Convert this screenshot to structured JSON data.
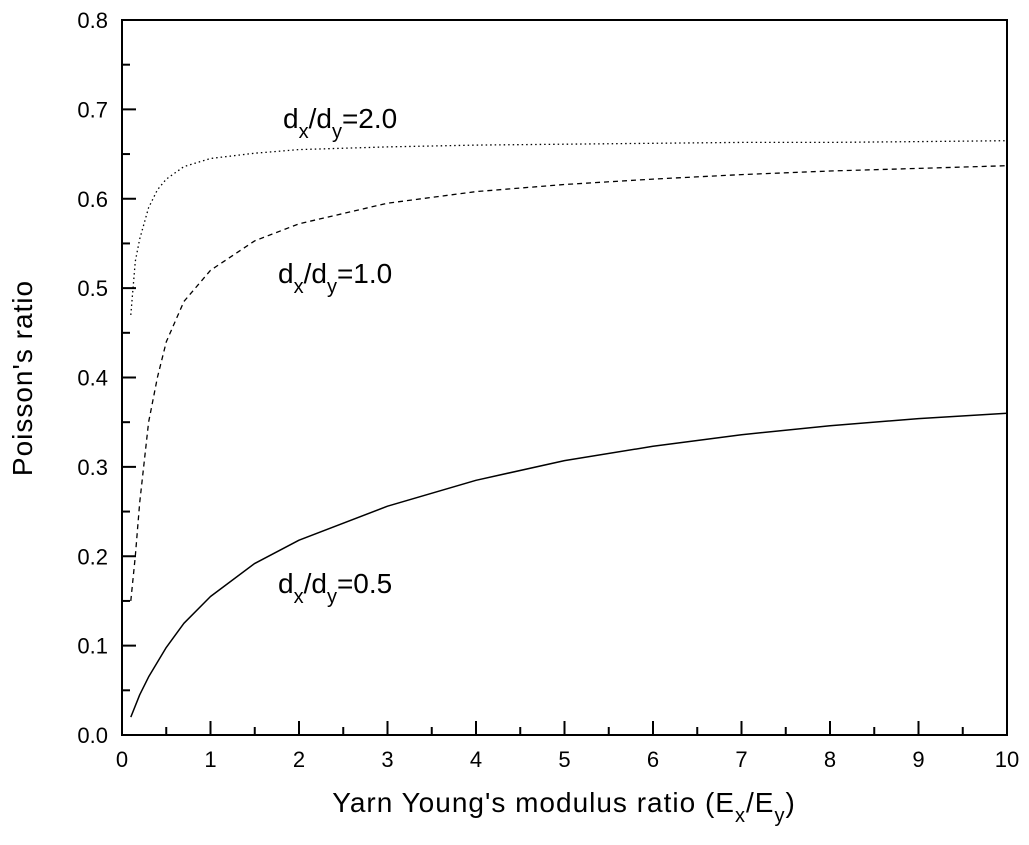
{
  "chart_data": {
    "type": "line",
    "title": "",
    "xlabel": {
      "main": "Yarn Young's modulus ratio (E",
      "sub1": "x",
      "slash": "/E",
      "sub2": "y",
      "close": ")"
    },
    "ylabel": "Poisson's ratio",
    "xlim": [
      0,
      10
    ],
    "ylim": [
      0,
      0.8
    ],
    "xticks": [
      0,
      1,
      2,
      3,
      4,
      5,
      6,
      7,
      8,
      9,
      10
    ],
    "xtick_labels": [
      "0",
      "1",
      "2",
      "3",
      "4",
      "5",
      "6",
      "7",
      "8",
      "9",
      "10"
    ],
    "yticks": [
      0,
      0.1,
      0.2,
      0.3,
      0.4,
      0.5,
      0.6,
      0.7,
      0.8
    ],
    "ytick_labels": [
      "0.0",
      "0.1",
      "0.2",
      "0.3",
      "0.4",
      "0.5",
      "0.6",
      "0.7",
      "0.8"
    ],
    "grid": false,
    "series": [
      {
        "style": "dotted",
        "x": [
          0.1,
          0.15,
          0.2,
          0.3,
          0.4,
          0.5,
          0.7,
          1,
          1.5,
          2,
          3,
          4,
          5,
          6,
          7,
          8,
          9,
          10
        ],
        "y": [
          0.47,
          0.53,
          0.555,
          0.59,
          0.61,
          0.622,
          0.636,
          0.645,
          0.651,
          0.655,
          0.658,
          0.66,
          0.661,
          0.662,
          0.663,
          0.663,
          0.664,
          0.665
        ]
      },
      {
        "style": "dashed",
        "x": [
          0.1,
          0.15,
          0.2,
          0.3,
          0.4,
          0.5,
          0.7,
          1,
          1.5,
          2,
          3,
          4,
          5,
          6,
          7,
          8,
          9,
          10
        ],
        "y": [
          0.15,
          0.2,
          0.26,
          0.35,
          0.4,
          0.44,
          0.485,
          0.52,
          0.553,
          0.572,
          0.595,
          0.608,
          0.616,
          0.622,
          0.627,
          0.631,
          0.634,
          0.637
        ]
      },
      {
        "style": "solid",
        "x": [
          0.1,
          0.2,
          0.3,
          0.5,
          0.7,
          1,
          1.5,
          2,
          3,
          4,
          5,
          6,
          7,
          8,
          9,
          10
        ],
        "y": [
          0.02,
          0.045,
          0.065,
          0.098,
          0.125,
          0.155,
          0.192,
          0.218,
          0.256,
          0.285,
          0.307,
          0.323,
          0.336,
          0.346,
          0.354,
          0.36
        ]
      }
    ],
    "annotations": [
      {
        "main": "d",
        "sub1": "x",
        "slash": "/d",
        "sub2": "y",
        "value": "=2.0"
      },
      {
        "main": "d",
        "sub1": "x",
        "slash": "/d",
        "sub2": "y",
        "value": "=1.0"
      },
      {
        "main": "d",
        "sub1": "x",
        "slash": "/d",
        "sub2": "y",
        "value": "=0.5"
      }
    ]
  }
}
